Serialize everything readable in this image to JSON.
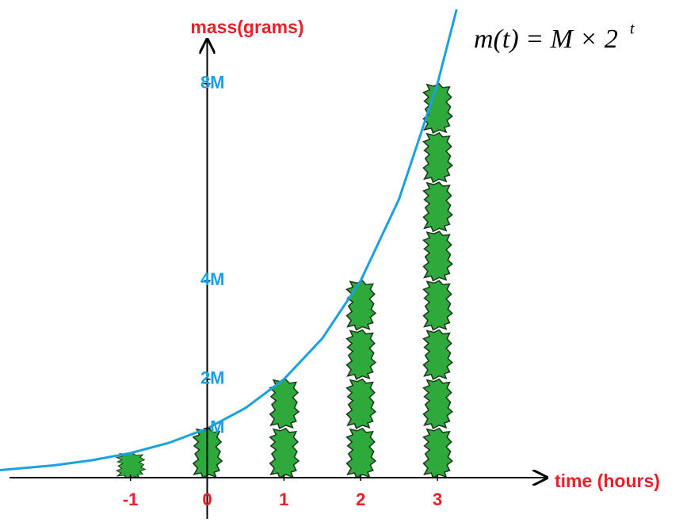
{
  "chart_data": {
    "type": "line",
    "y_label": "mass(grams)",
    "x_label": "time (hours)",
    "formula": "m(t) = M × 2",
    "formula_exponent": "t",
    "x": [
      -2.7,
      -2,
      -1.5,
      -1,
      -0.5,
      0,
      0.5,
      1,
      1.5,
      2,
      2.5,
      3,
      3.25
    ],
    "values": [
      0.154,
      0.25,
      0.354,
      0.5,
      0.707,
      1,
      1.414,
      2,
      2.828,
      4,
      5.657,
      8,
      9.51
    ],
    "color": "#1ba0e0",
    "blob_color": "#2eaa3c",
    "xlim": [
      -2.7,
      6.2
    ],
    "ylim": [
      -0.9,
      9.7
    ],
    "xticks": [
      -1,
      0,
      1,
      2,
      3
    ],
    "yticks": [
      {
        "value": 1,
        "label": "M"
      },
      {
        "value": 2,
        "label": "2M"
      },
      {
        "value": 4,
        "label": "4M"
      },
      {
        "value": 8,
        "label": "8M"
      }
    ]
  }
}
